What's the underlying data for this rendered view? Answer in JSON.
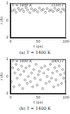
{
  "chart_data": [
    {
      "type": "scatter",
      "annotations": [
        "T = 1400 K",
        "(110) Γ"
      ],
      "caption": "(a) T = 1400 K",
      "x_label": "t (ps)",
      "y_label": "r (Å)",
      "x": [
        3,
        7,
        10,
        14,
        17,
        21,
        24,
        28,
        31,
        35,
        38,
        42,
        45,
        49,
        52,
        56,
        59,
        63,
        66,
        70,
        73,
        77,
        80,
        84,
        87,
        91,
        94,
        97
      ],
      "values": [
        0.55,
        0.62,
        0.48,
        0.7,
        0.58,
        0.66,
        0.52,
        0.74,
        0.6,
        0.45,
        0.68,
        0.57,
        0.63,
        0.5,
        0.72,
        0.59,
        0.65,
        0.47,
        0.69,
        0.56,
        0.61,
        0.53,
        0.71,
        0.58,
        0.64,
        0.49,
        0.67,
        0.6
      ],
      "color": "#555555",
      "marker": "circle",
      "xlim": [
        0,
        100
      ],
      "xticks": [
        0,
        50,
        100
      ],
      "ylim": [
        -1,
        1
      ],
      "yticks": [
        -1,
        0,
        1
      ],
      "grid": false
    },
    {
      "type": "scatter",
      "annotations": [
        "T = 1400 K",
        "(001) Γ"
      ],
      "caption": "(b) T = 1400 K",
      "x_label": "t (ps)",
      "y_label": "r (Å)",
      "x": [
        2,
        4,
        6,
        8,
        10,
        12,
        14,
        16,
        18,
        20,
        22,
        24,
        26,
        28,
        30,
        32,
        34,
        36,
        38,
        40,
        42,
        44,
        46,
        48,
        50,
        52,
        54,
        56,
        58,
        60,
        62,
        64,
        66,
        68,
        70,
        72,
        74,
        76,
        78,
        80,
        82,
        84,
        86,
        88,
        90,
        92,
        94,
        96,
        98,
        100
      ],
      "values": [
        -0.3,
        0.5,
        -0.6,
        0.2,
        0.7,
        -0.1,
        0.4,
        -0.5,
        0.1,
        0.6,
        -0.7,
        0.3,
        -0.2,
        0.5,
        -0.4,
        0.0,
        0.6,
        -0.3,
        0.2,
        -0.6,
        0.4,
        -0.1,
        0.7,
        -0.5,
        0.1,
        0.3,
        -0.2,
        0.5,
        -0.7,
        0.2,
        0.6,
        -0.4,
        0.0,
        0.4,
        -0.3,
        0.7,
        -0.1,
        0.2,
        -0.6,
        0.5,
        -0.2,
        0.3,
        -0.5,
        0.6,
        0.1,
        -0.4,
        0.4,
        -0.1,
        0.2,
        -0.3
      ],
      "color": "#555555",
      "marker": "circle",
      "xlim": [
        0,
        100
      ],
      "xticks": [
        0,
        50,
        100
      ],
      "ylim": [
        -1,
        1
      ],
      "yticks": [
        -1,
        0,
        1
      ],
      "grid": false
    }
  ]
}
